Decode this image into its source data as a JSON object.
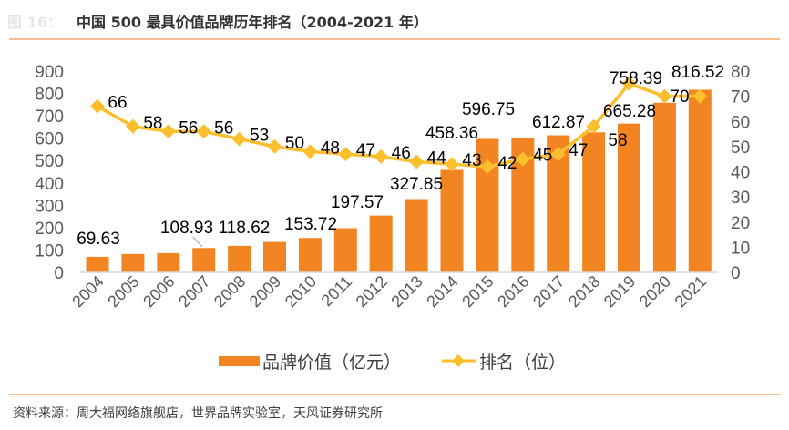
{
  "figure_label": "图 16：",
  "title": "中国 500 最具价值品牌历年排名（2004-2021 年）",
  "source": "资料来源：周大福网络旗舰店，世界品牌实验室，天风证券研究所",
  "colors": {
    "bar": "#F28522",
    "line": "#FBBF2E",
    "rule": "#F5A76A",
    "axis_text": "#595959"
  },
  "chart_data": {
    "type": "bar+line",
    "categories": [
      "2004",
      "2005",
      "2006",
      "2007",
      "2008",
      "2009",
      "2010",
      "2011",
      "2012",
      "2013",
      "2014",
      "2015",
      "2016",
      "2017",
      "2018",
      "2019",
      "2020",
      "2021"
    ],
    "series": [
      {
        "name": "品牌价值（亿元）",
        "type": "bar",
        "axis": "left",
        "values": [
          69.63,
          82,
          86,
          108.93,
          118.62,
          136,
          153.72,
          197.57,
          254,
          327.85,
          458.36,
          596.75,
          603,
          612.87,
          626,
          665.28,
          758.39,
          816.52
        ],
        "data_labels": [
          "69.63",
          null,
          null,
          "108.93",
          "118.62",
          null,
          "153.72",
          "197.57",
          null,
          "327.85",
          "458.36",
          "596.75",
          null,
          "612.87",
          null,
          "665.28",
          "758.39",
          "816.52"
        ]
      },
      {
        "name": "排名（位）",
        "type": "line",
        "axis": "right",
        "marker": "diamond",
        "values": [
          66,
          58,
          56,
          56,
          53,
          50,
          48,
          47,
          46,
          44,
          43,
          42,
          45,
          47,
          58,
          75,
          70,
          70
        ],
        "data_labels": [
          "66",
          "58",
          "56",
          "56",
          "53",
          "50",
          "48",
          "47",
          "46",
          "44",
          "43",
          "42",
          "45",
          "47",
          "58",
          null,
          null,
          "70"
        ]
      }
    ],
    "y_left": {
      "min": 0,
      "max": 900,
      "ticks": [
        "0",
        "100",
        "200",
        "300",
        "400",
        "500",
        "600",
        "700",
        "800",
        "900"
      ]
    },
    "y_right": {
      "min": 0,
      "max": 80,
      "ticks": [
        "0",
        "10",
        "20",
        "30",
        "40",
        "50",
        "60",
        "70",
        "80"
      ]
    },
    "grid": false,
    "legend": "bottom",
    "legend_entries": [
      "品牌价值（亿元）",
      "排名（位）"
    ]
  }
}
